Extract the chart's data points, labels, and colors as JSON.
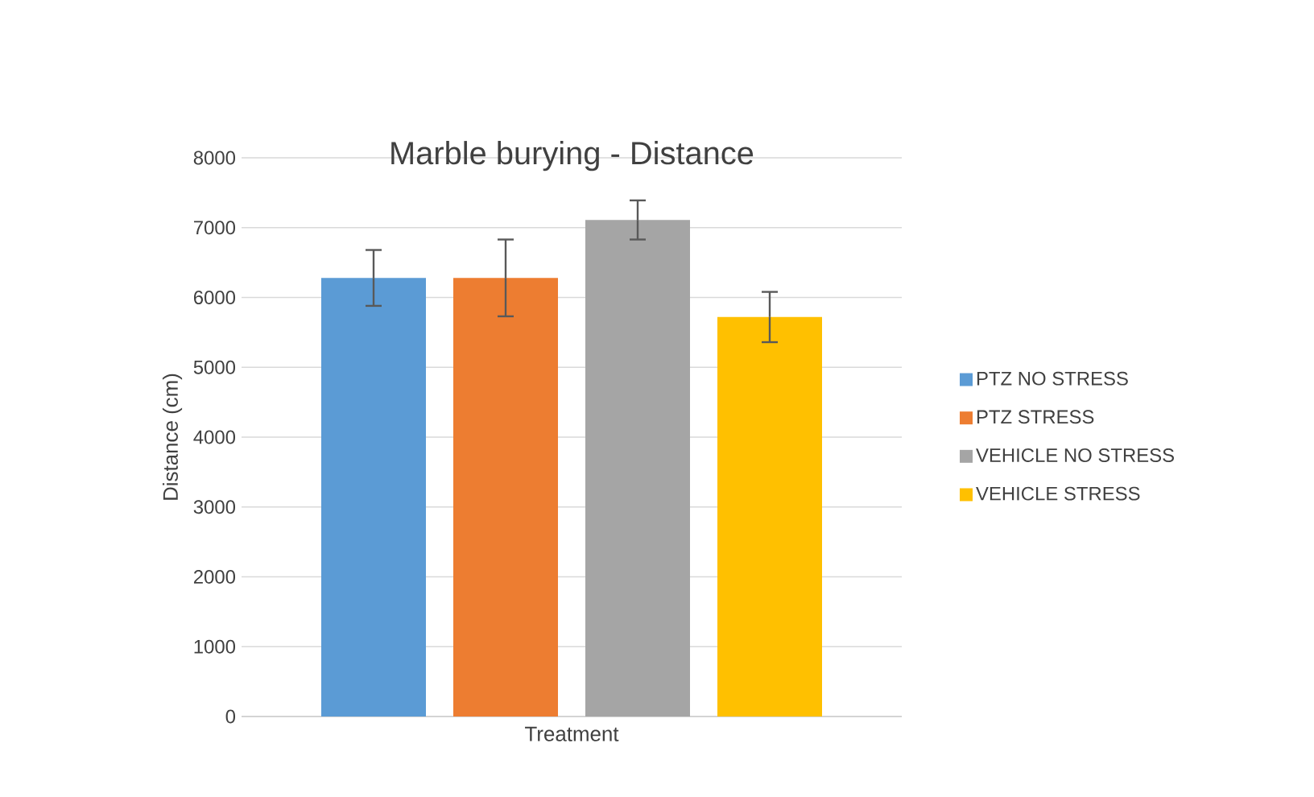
{
  "chart_data": {
    "type": "bar",
    "title": "Marble burying - Distance",
    "xlabel": "Treatment",
    "ylabel": "Distance (cm)",
    "categories": [
      null
    ],
    "series": [
      {
        "name": "PTZ NO STRESS",
        "color": "#5b9bd5",
        "values": [
          6280
        ],
        "errors": [
          400
        ]
      },
      {
        "name": "PTZ STRESS",
        "color": "#ed7d31",
        "values": [
          6280
        ],
        "errors": [
          550
        ]
      },
      {
        "name": "VEHICLE NO STRESS",
        "color": "#a5a5a5",
        "values": [
          7110
        ],
        "errors": [
          280
        ]
      },
      {
        "name": "VEHICLE STRESS",
        "color": "#ffc000",
        "values": [
          5720
        ],
        "errors": [
          360
        ]
      }
    ],
    "ylim": [
      0,
      8000
    ],
    "yticks": [
      0,
      1000,
      2000,
      3000,
      4000,
      5000,
      6000,
      7000,
      8000
    ],
    "grid": "y",
    "legend": "right"
  }
}
